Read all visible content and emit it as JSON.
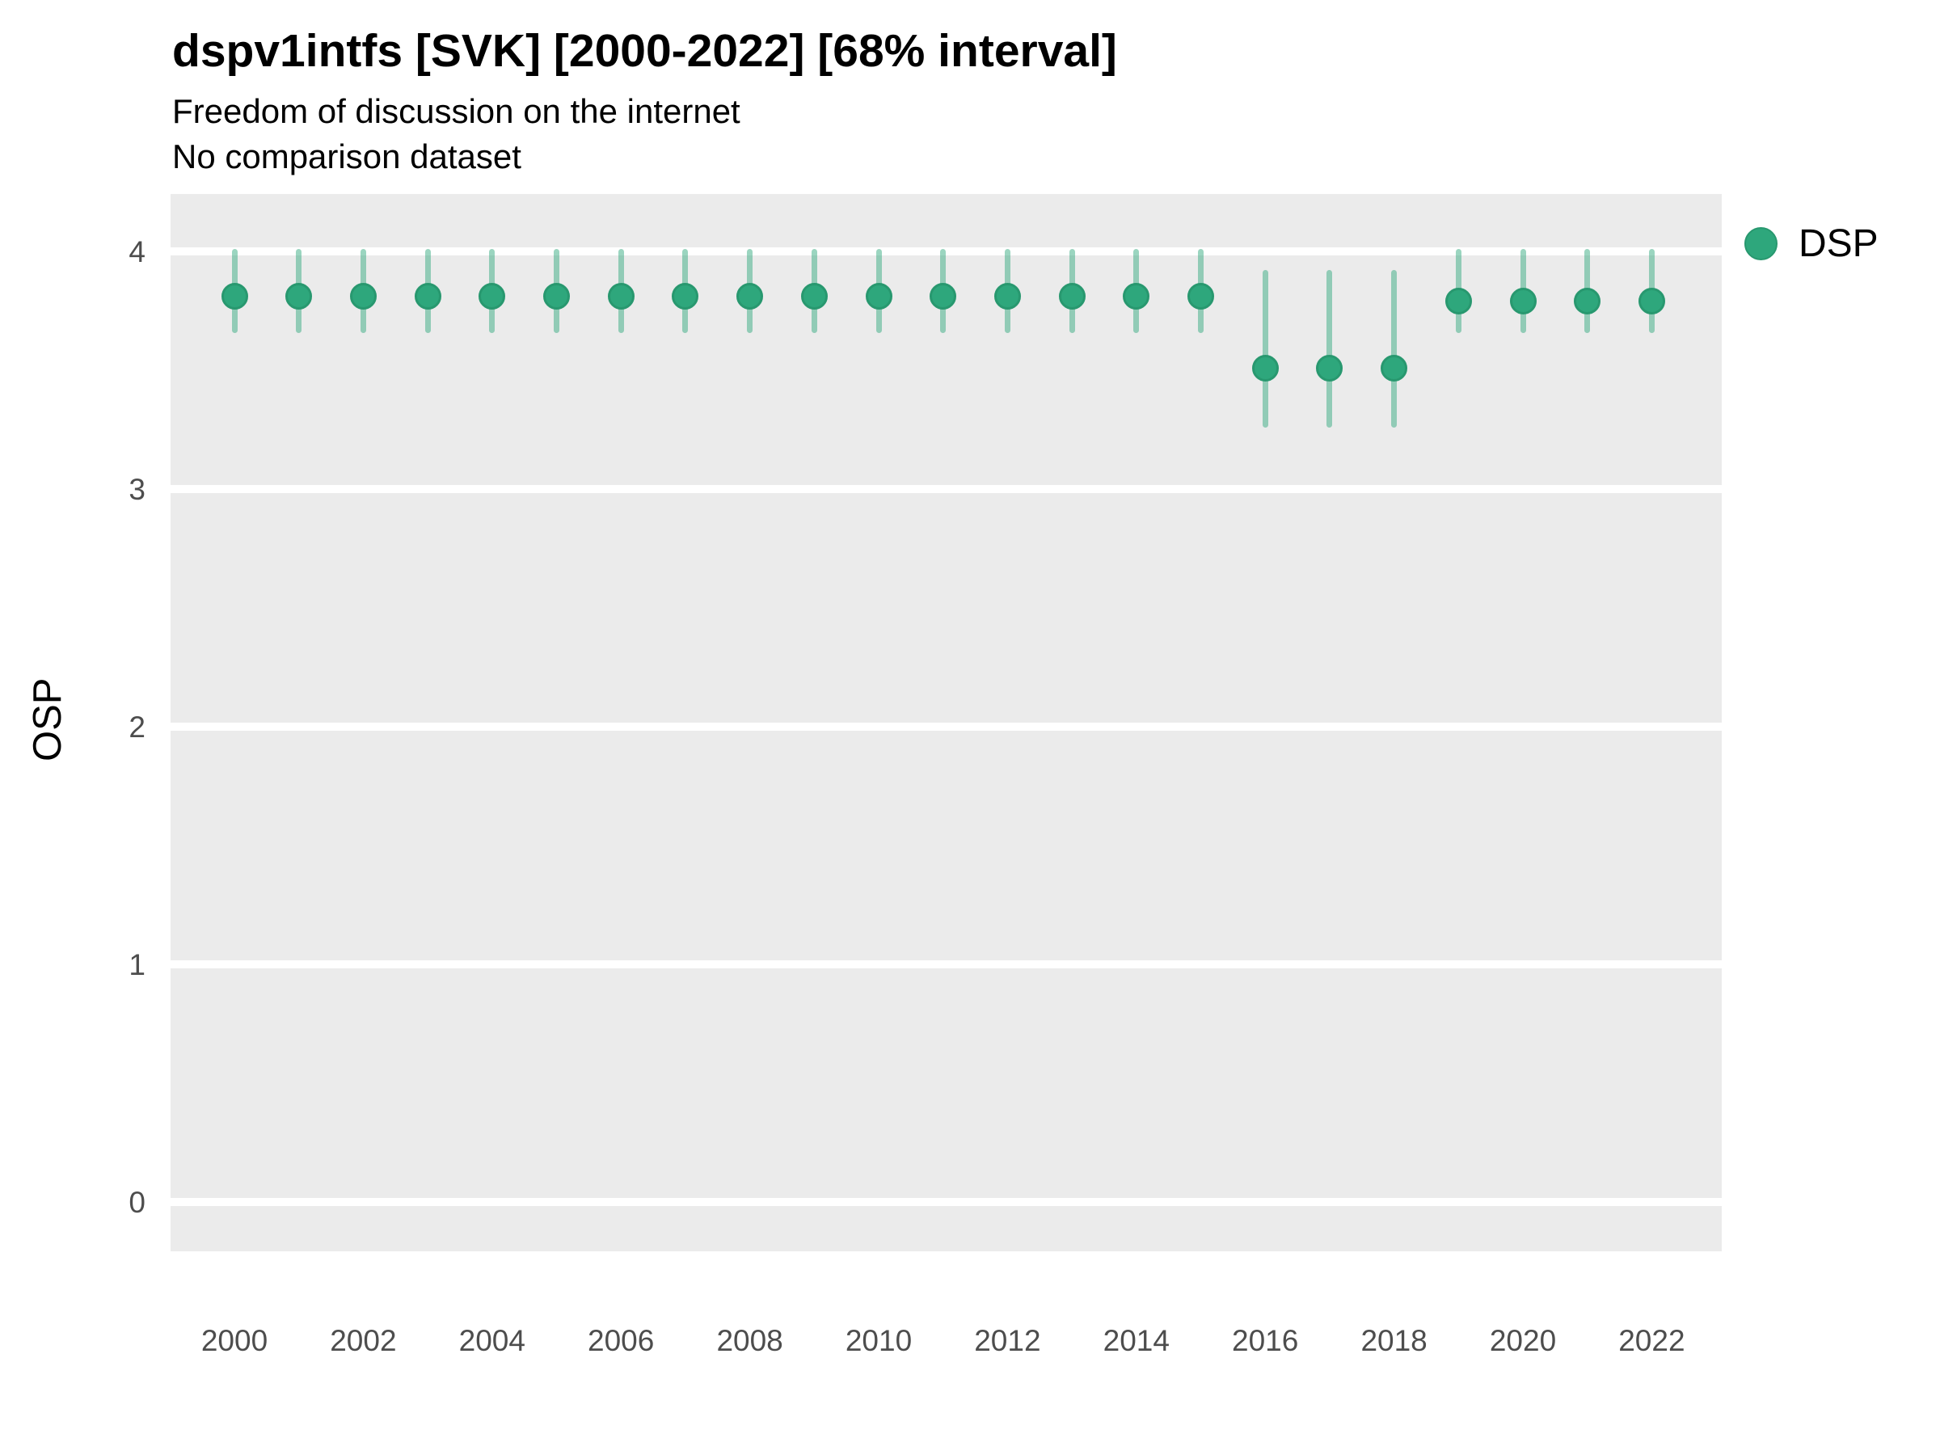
{
  "header": {
    "title": "dspv1intfs [SVK] [2000-2022] [68% interval]",
    "subtitle": "Freedom of discussion on the internet",
    "note": "No comparison dataset"
  },
  "axes": {
    "y_title": "OSP",
    "y_ticks": [
      "4",
      "3",
      "2",
      "1",
      "0"
    ],
    "x_ticks": [
      "2000",
      "2002",
      "2004",
      "2006",
      "2008",
      "2010",
      "2012",
      "2014",
      "2016",
      "2018",
      "2020",
      "2022"
    ]
  },
  "legend": {
    "items": [
      {
        "label": "DSP",
        "marker": "circle-icon",
        "color": "#2EA77C"
      }
    ]
  },
  "colors": {
    "panel_background": "#EBEBEB",
    "gridline": "#FFFFFF",
    "point_fill": "#2EA77C",
    "point_ring": "#28986F",
    "interval_line": "rgba(47,167,124,0.48)",
    "tick_text": "#4D4D4D",
    "text": "#000000"
  },
  "chart_data": {
    "type": "scatter",
    "variant": "pointrange",
    "title": "dspv1intfs [SVK] [2000-2022] [68% interval]",
    "subtitle": "Freedom of discussion on the internet",
    "note": "No comparison dataset",
    "interval_level": "68%",
    "xlabel": "",
    "ylabel": "OSP",
    "ylim": [
      -0.21,
      4.24
    ],
    "yticks": [
      4,
      3,
      2,
      1,
      0
    ],
    "xticks": [
      2000,
      2002,
      2004,
      2006,
      2008,
      2010,
      2012,
      2014,
      2016,
      2018,
      2020,
      2022
    ],
    "grid": "horizontal-white-on-gray",
    "legend_position": "right-top",
    "x": [
      2000,
      2001,
      2002,
      2003,
      2004,
      2005,
      2006,
      2007,
      2008,
      2009,
      2010,
      2011,
      2012,
      2013,
      2014,
      2015,
      2016,
      2017,
      2018,
      2019,
      2020,
      2021,
      2022
    ],
    "series": [
      {
        "name": "DSP",
        "values": [
          3.81,
          3.81,
          3.81,
          3.81,
          3.81,
          3.81,
          3.81,
          3.81,
          3.81,
          3.81,
          3.81,
          3.81,
          3.81,
          3.81,
          3.81,
          3.81,
          3.51,
          3.51,
          3.51,
          3.79,
          3.79,
          3.79,
          3.79
        ],
        "lower": [
          3.67,
          3.67,
          3.67,
          3.67,
          3.67,
          3.67,
          3.67,
          3.67,
          3.67,
          3.67,
          3.67,
          3.67,
          3.67,
          3.67,
          3.67,
          3.67,
          3.27,
          3.27,
          3.27,
          3.67,
          3.67,
          3.67,
          3.67
        ],
        "upper": [
          4.0,
          4.0,
          4.0,
          4.0,
          4.0,
          4.0,
          4.0,
          4.0,
          4.0,
          4.0,
          4.0,
          4.0,
          4.0,
          4.0,
          4.0,
          4.0,
          3.91,
          3.91,
          3.91,
          4.0,
          4.0,
          4.0,
          4.0
        ]
      }
    ]
  }
}
